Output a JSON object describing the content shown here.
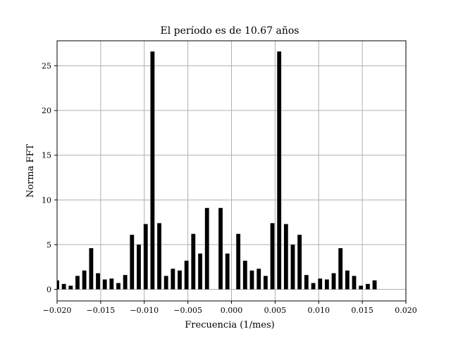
{
  "chart_data": {
    "type": "bar",
    "title": "El período es de 10.67 años",
    "xlabel": "Frecuencia (1/mes)",
    "ylabel": "Norma FFT",
    "xlim": [
      -0.02,
      0.02
    ],
    "ylim": [
      -1.3,
      27.8
    ],
    "grid": true,
    "bar_color": "#000000",
    "grid_color": "#b0b0b0",
    "bar_width": 0.00047,
    "x_ticks": [
      -0.02,
      -0.015,
      -0.01,
      -0.005,
      0.0,
      0.005,
      0.01,
      0.015,
      0.02
    ],
    "x_tick_labels": [
      "−0.020",
      "−0.015",
      "−0.010",
      "−0.005",
      "0.000",
      "0.005",
      "0.010",
      "0.015",
      "0.020"
    ],
    "y_ticks": [
      0,
      5,
      10,
      15,
      20,
      25
    ],
    "y_tick_labels": [
      "0",
      "5",
      "10",
      "15",
      "20",
      "25"
    ],
    "x": [
      -0.02,
      -0.01922,
      -0.01844,
      -0.01766,
      -0.01688,
      -0.01609,
      -0.01531,
      -0.01453,
      -0.01375,
      -0.01297,
      -0.01219,
      -0.01141,
      -0.01063,
      -0.00984,
      -0.00906,
      -0.00828,
      -0.0075,
      -0.00672,
      -0.00594,
      -0.00516,
      -0.00438,
      -0.00359,
      -0.00281,
      -0.00203,
      -0.00125,
      -0.00047,
      0.00078,
      0.00156,
      0.00234,
      0.00313,
      0.00391,
      0.00469,
      0.00547,
      0.00625,
      0.00703,
      0.00781,
      0.00859,
      0.00938,
      0.01016,
      0.01094,
      0.01172,
      0.0125,
      0.01328,
      0.01406,
      0.01484,
      0.01563,
      0.01641,
      0.01719,
      0.01797,
      0.01875,
      0.01953
    ],
    "values": [
      1.0,
      0.6,
      0.4,
      1.5,
      2.1,
      4.6,
      1.8,
      1.1,
      1.2,
      0.7,
      1.6,
      6.1,
      5.0,
      7.3,
      26.6,
      7.4,
      1.5,
      2.3,
      2.1,
      3.2,
      6.2,
      4.0,
      9.1,
      0.0,
      9.1,
      4.0,
      6.2,
      3.2,
      2.1,
      2.3,
      1.5,
      7.4,
      26.6,
      7.3,
      5.0,
      6.1,
      1.6,
      0.7,
      1.2,
      1.1,
      1.8,
      4.6,
      2.1,
      1.5,
      0.4,
      0.6,
      1.0,
      0,
      0,
      0,
      0
    ]
  }
}
